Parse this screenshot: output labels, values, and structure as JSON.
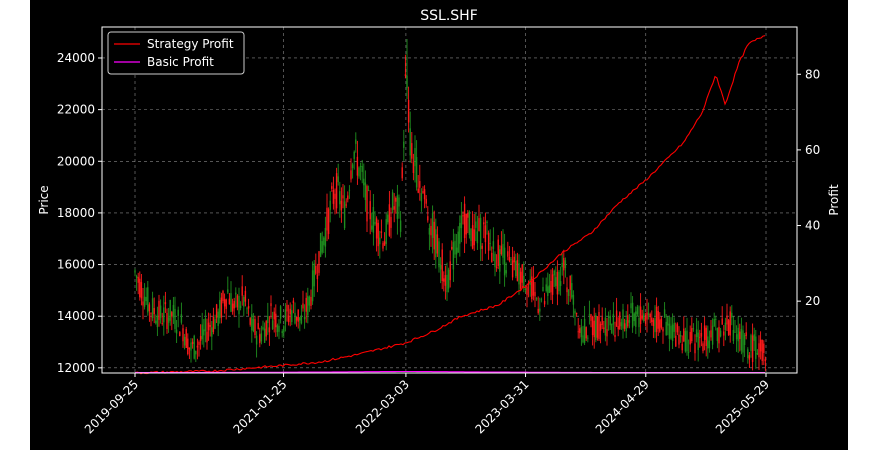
{
  "chart_data": {
    "type": "candlestick-with-line",
    "title": "SSL.SHF",
    "ylabel_left": "Price",
    "ylabel_right": "Profit",
    "background": "#000000",
    "grid": true,
    "legend_placement": "top-left",
    "x_ticks": [
      "2019-09-25",
      "2021-01-25",
      "2022-03-03",
      "2023-03-31",
      "2024-04-29",
      "2025-05-29"
    ],
    "y_left_ticks": [
      12000,
      14000,
      16000,
      18000,
      20000,
      22000,
      24000
    ],
    "y_left_range": [
      11800,
      25200
    ],
    "y_right_ticks": [
      20,
      40,
      60,
      80
    ],
    "y_right_range": [
      1,
      92.5
    ],
    "colors": {
      "up": "#1f8f1f",
      "down": "#ff1a1a",
      "strategy": "#ff0000",
      "basic": "#ff00ff"
    },
    "price_path": [
      [
        "2019-09-25",
        15700
      ],
      [
        "2019-10-20",
        15000
      ],
      [
        "2019-11-15",
        14300
      ],
      [
        "2019-12-20",
        14000
      ],
      [
        "2020-01-20",
        14100
      ],
      [
        "2020-02-25",
        13700
      ],
      [
        "2020-03-25",
        12700
      ],
      [
        "2020-04-25",
        13000
      ],
      [
        "2020-05-25",
        13600
      ],
      [
        "2020-06-25",
        14000
      ],
      [
        "2020-07-25",
        15000
      ],
      [
        "2020-08-15",
        14300
      ],
      [
        "2020-09-15",
        14700
      ],
      [
        "2020-10-15",
        13500
      ],
      [
        "2020-11-15",
        13300
      ],
      [
        "2020-12-15",
        14100
      ],
      [
        "2021-01-25",
        13800
      ],
      [
        "2021-02-25",
        14300
      ],
      [
        "2021-03-25",
        13800
      ],
      [
        "2021-04-20",
        14600
      ],
      [
        "2021-05-15",
        16000
      ],
      [
        "2021-06-15",
        17500
      ],
      [
        "2021-07-15",
        19000
      ],
      [
        "2021-08-15",
        18000
      ],
      [
        "2021-09-10",
        20500
      ],
      [
        "2021-10-05",
        19600
      ],
      [
        "2021-10-25",
        18400
      ],
      [
        "2021-11-25",
        17500
      ],
      [
        "2021-12-25",
        17000
      ],
      [
        "2022-01-20",
        18300
      ],
      [
        "2022-02-15",
        17900
      ],
      [
        "2022-03-03",
        23500
      ],
      [
        "2022-03-20",
        20300
      ],
      [
        "2022-04-15",
        19400
      ],
      [
        "2022-05-15",
        18000
      ],
      [
        "2022-06-15",
        16600
      ],
      [
        "2022-07-15",
        15400
      ],
      [
        "2022-08-15",
        16700
      ],
      [
        "2022-09-15",
        17800
      ],
      [
        "2022-10-15",
        17100
      ],
      [
        "2022-11-15",
        17300
      ],
      [
        "2022-12-15",
        16500
      ],
      [
        "2023-01-15",
        16300
      ],
      [
        "2023-02-15",
        15800
      ],
      [
        "2023-03-31",
        15500
      ],
      [
        "2023-05-01",
        14700
      ],
      [
        "2023-06-01",
        14600
      ],
      [
        "2023-07-01",
        15200
      ],
      [
        "2023-08-01",
        15800
      ],
      [
        "2023-09-01",
        14900
      ],
      [
        "2023-10-01",
        13400
      ],
      [
        "2023-11-01",
        13600
      ],
      [
        "2023-12-01",
        13700
      ],
      [
        "2024-01-01",
        13800
      ],
      [
        "2024-02-01",
        13700
      ],
      [
        "2024-03-01",
        13900
      ],
      [
        "2024-04-29",
        14100
      ],
      [
        "2024-06-01",
        13800
      ],
      [
        "2024-07-01",
        13700
      ],
      [
        "2024-08-01",
        13400
      ],
      [
        "2024-09-01",
        13200
      ],
      [
        "2024-10-01",
        13000
      ],
      [
        "2024-11-01",
        13200
      ],
      [
        "2024-12-01",
        13300
      ],
      [
        "2025-01-01",
        13500
      ],
      [
        "2025-02-01",
        13800
      ],
      [
        "2025-03-01",
        13200
      ],
      [
        "2025-04-01",
        12800
      ],
      [
        "2025-05-29",
        12700
      ]
    ],
    "series": [
      {
        "name": "Strategy Profit",
        "points": [
          [
            "2019-09-25",
            1
          ],
          [
            "2020-06-01",
            1.5
          ],
          [
            "2021-01-25",
            3
          ],
          [
            "2021-06-01",
            4
          ],
          [
            "2021-10-01",
            6
          ],
          [
            "2022-03-03",
            9
          ],
          [
            "2022-06-01",
            12
          ],
          [
            "2022-09-01",
            16
          ],
          [
            "2023-01-01",
            19
          ],
          [
            "2023-03-31",
            24
          ],
          [
            "2023-08-01",
            33
          ],
          [
            "2023-11-01",
            38
          ],
          [
            "2024-02-01",
            46
          ],
          [
            "2024-04-29",
            52
          ],
          [
            "2024-07-01",
            57
          ],
          [
            "2024-09-01",
            62
          ],
          [
            "2024-11-01",
            70
          ],
          [
            "2024-12-15",
            80
          ],
          [
            "2025-01-15",
            72
          ],
          [
            "2025-03-01",
            83
          ],
          [
            "2025-04-01",
            88
          ],
          [
            "2025-05-29",
            90.5
          ]
        ]
      },
      {
        "name": "Basic Profit",
        "points": [
          [
            "2019-09-25",
            1.1
          ],
          [
            "2021-01-25",
            1.2
          ],
          [
            "2022-03-03",
            1.4
          ],
          [
            "2023-03-31",
            1.2
          ],
          [
            "2024-04-29",
            1.1
          ],
          [
            "2025-05-29",
            1.1
          ]
        ]
      }
    ]
  }
}
